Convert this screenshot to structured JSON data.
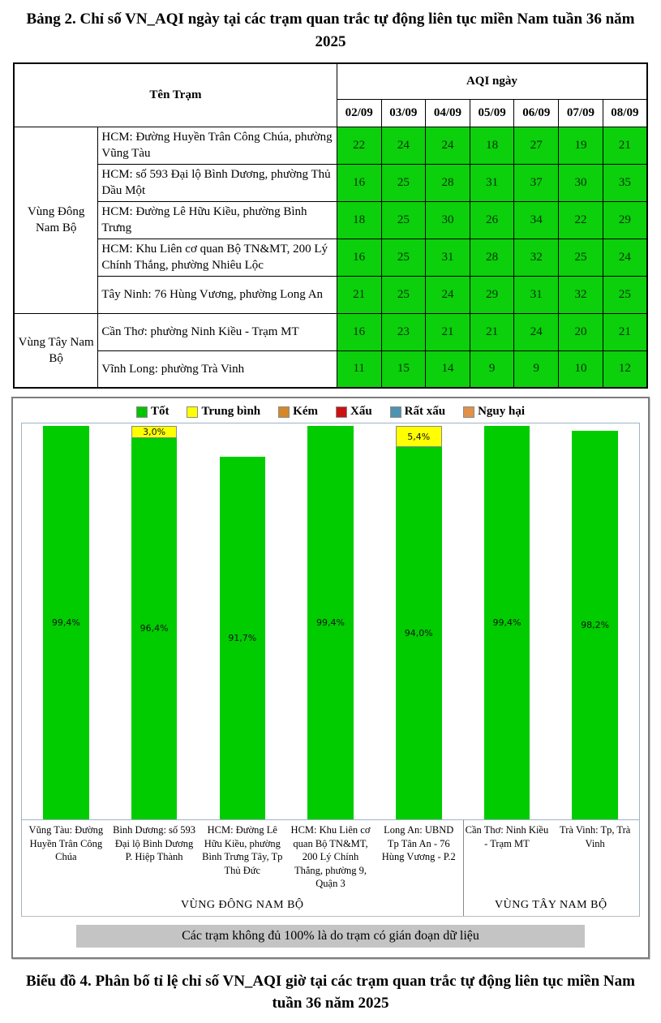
{
  "page": {
    "table_title": "Bảng 2. Chỉ số VN_AQI ngày tại các trạm quan trắc tự động liên tục miền Nam tuần 36 năm 2025",
    "chart_caption": "Biểu đồ 4. Phân bố tỉ lệ chỉ số VN_AQI giờ tại các trạm quan trắc tự động liên tục miền Nam tuần 36 năm 2025"
  },
  "table": {
    "station_header": "Tên Trạm",
    "aqi_header": "AQI ngày",
    "dates": [
      "02/09",
      "03/09",
      "04/09",
      "05/09",
      "06/09",
      "07/09",
      "08/09"
    ],
    "cell_color": "#0bd00b",
    "groups": [
      {
        "region": "Vùng Đông Nam Bộ",
        "rows": [
          {
            "station": "HCM: Đường Huyền Trân Công Chúa, phường Vũng Tàu",
            "values": [
              22,
              24,
              24,
              18,
              27,
              19,
              21
            ]
          },
          {
            "station": "HCM: số 593 Đại lộ Bình Dương, phường Thủ Dầu Một",
            "values": [
              16,
              25,
              28,
              31,
              37,
              30,
              35
            ]
          },
          {
            "station": "HCM: Đường Lê Hữu Kiều, phường Bình Trưng",
            "values": [
              18,
              25,
              30,
              26,
              34,
              22,
              29
            ]
          },
          {
            "station": "HCM: Khu Liên cơ quan Bộ TN&MT, 200 Lý Chính Thắng, phường Nhiêu Lộc",
            "values": [
              16,
              25,
              31,
              28,
              32,
              25,
              24
            ]
          },
          {
            "station": "Tây Ninh: 76 Hùng Vương, phường Long An",
            "values": [
              21,
              25,
              24,
              29,
              31,
              32,
              25
            ]
          }
        ]
      },
      {
        "region": "Vùng Tây Nam Bộ",
        "rows": [
          {
            "station": "Cần Thơ: phường Ninh Kiều - Trạm MT",
            "values": [
              16,
              23,
              21,
              21,
              24,
              20,
              21
            ]
          },
          {
            "station": "Vĩnh Long: phường Trà Vinh",
            "values": [
              11,
              15,
              14,
              9,
              9,
              10,
              12
            ]
          }
        ]
      }
    ]
  },
  "chart_data": {
    "type": "bar",
    "stacked": true,
    "ylim": [
      0,
      100
    ],
    "legend_position": "top",
    "grid": false,
    "legend": [
      {
        "label": "Tốt",
        "color": "#00c400"
      },
      {
        "label": "Trung bình",
        "color": "#ffff00"
      },
      {
        "label": "Kém",
        "color": "#d4882a"
      },
      {
        "label": "Xấu",
        "color": "#cc1111"
      },
      {
        "label": "Rất xấu",
        "color": "#4f93b0"
      },
      {
        "label": "Nguy hại",
        "color": "#e0914a"
      }
    ],
    "categories": [
      "Vũng Tàu: Đường Huyền Trân Công Chúa",
      "Bình Dương: số 593 Đại lộ Bình Dương P. Hiệp Thành",
      "HCM: Đường Lê Hữu Kiều, phường Bình Trưng Tây, Tp Thủ Đức",
      "HCM: Khu Liên cơ quan Bộ TN&MT, 200 Lý Chính Thắng, phường 9, Quận 3",
      "Long An: UBND Tp Tân An - 76 Hùng Vương - P.2",
      "Cần Thơ: Ninh Kiều - Trạm MT",
      "Trà Vinh: Tp, Trà Vinh"
    ],
    "series": [
      {
        "name": "Tốt",
        "color": "#00cc00",
        "values": [
          99.4,
          96.4,
          91.7,
          99.4,
          94.0,
          99.4,
          98.2
        ],
        "labels": [
          "99,4%",
          "96,4%",
          "91,7%",
          "99,4%",
          "94,0%",
          "99,4%",
          "98,2%"
        ]
      },
      {
        "name": "Trung bình",
        "color": "#ffff00",
        "values": [
          0,
          3.0,
          0,
          0,
          5.4,
          0,
          0
        ],
        "labels": [
          "",
          "3,0%",
          "",
          "",
          "5,4%",
          "",
          ""
        ]
      }
    ],
    "region_groups": [
      {
        "label": "VÙNG ĐÔNG NAM BỘ",
        "span": 5
      },
      {
        "label": "VÙNG TÂY NAM BỘ",
        "span": 2
      }
    ],
    "note": "Các trạm không đủ 100% là do trạm có gián đoạn dữ liệu"
  }
}
